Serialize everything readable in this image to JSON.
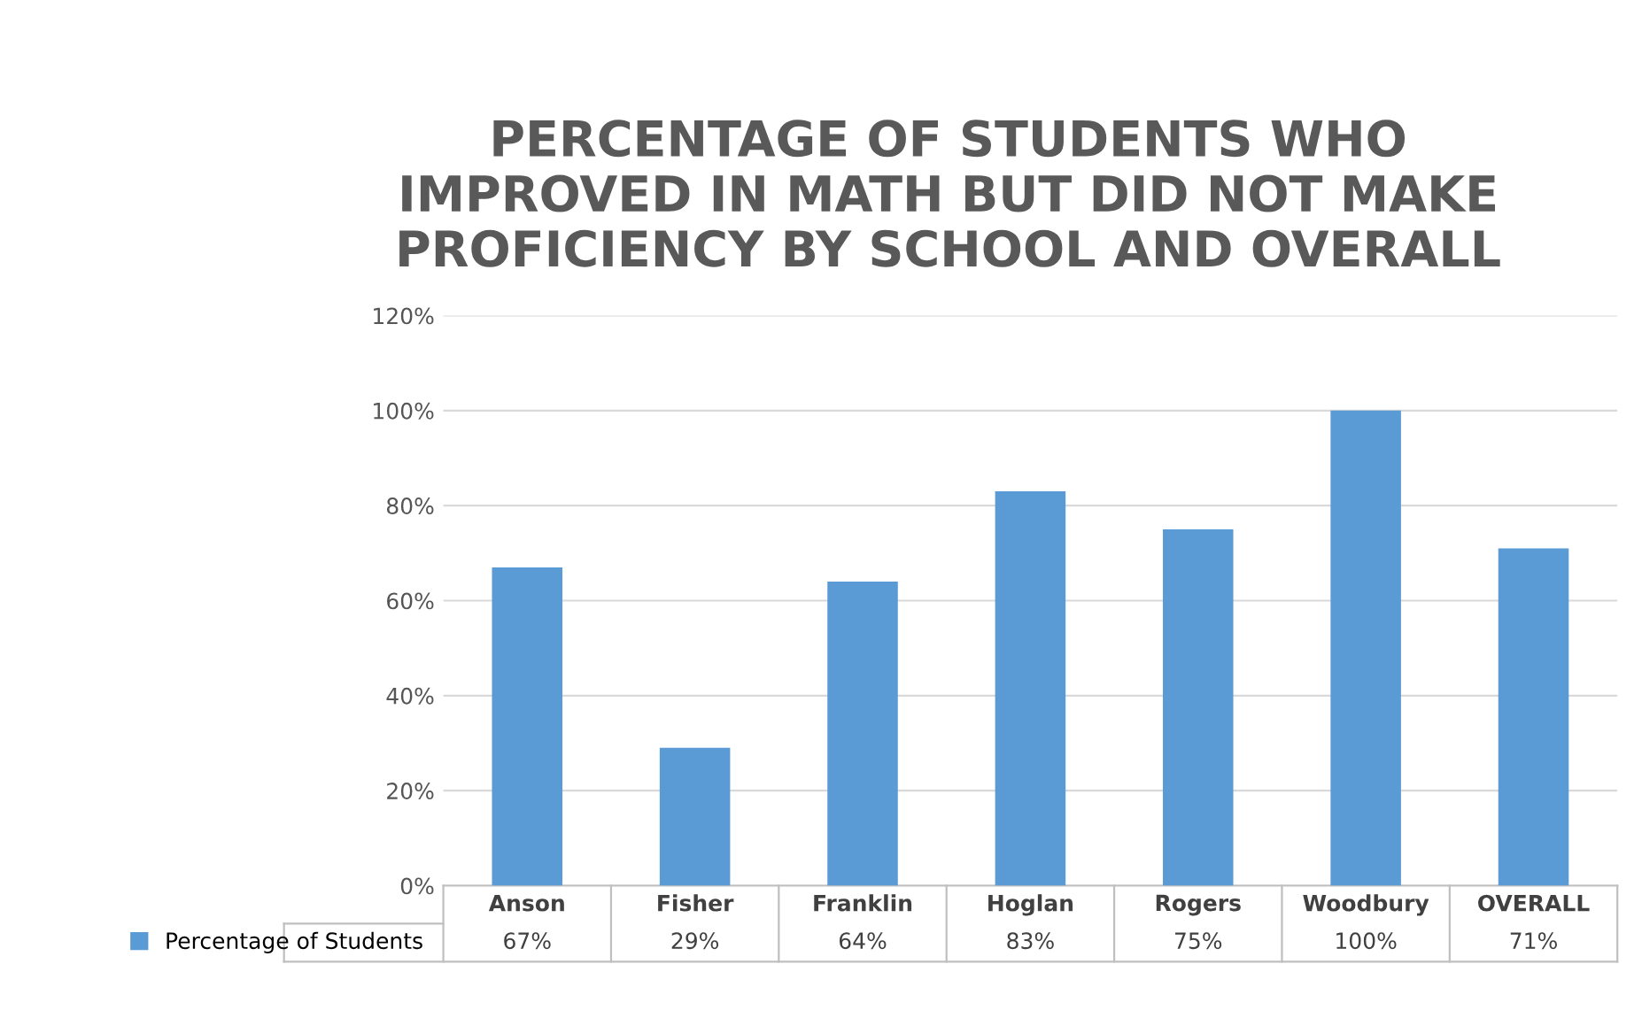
{
  "chart_data": {
    "type": "bar",
    "title": "PERCENTAGE OF STUDENTS WHO\nIMPROVED IN MATH BUT DID NOT MAKE\nPROFICIENCY BY SCHOOL AND OVERALL",
    "categories": [
      "Anson",
      "Fisher",
      "Franklin",
      "Hoglan",
      "Rogers",
      "Woodbury",
      "OVERALL"
    ],
    "series": [
      {
        "name": "Percentage of Students",
        "color": "#5b9bd5",
        "values": [
          67,
          29,
          64,
          83,
          75,
          100,
          71
        ],
        "value_labels": [
          "67%",
          "29%",
          "64%",
          "83%",
          "75%",
          "100%",
          "71%"
        ]
      }
    ],
    "ylim": [
      0,
      120
    ],
    "yticks": [
      {
        "value": 0,
        "label": "0%"
      },
      {
        "value": 20,
        "label": "20%"
      },
      {
        "value": 40,
        "label": "40%"
      },
      {
        "value": 60,
        "label": "60%"
      },
      {
        "value": 80,
        "label": "80%"
      },
      {
        "value": 100,
        "label": "100%"
      },
      {
        "value": 120,
        "label": "120%"
      }
    ],
    "grid": "y",
    "legend": "bottom left"
  }
}
